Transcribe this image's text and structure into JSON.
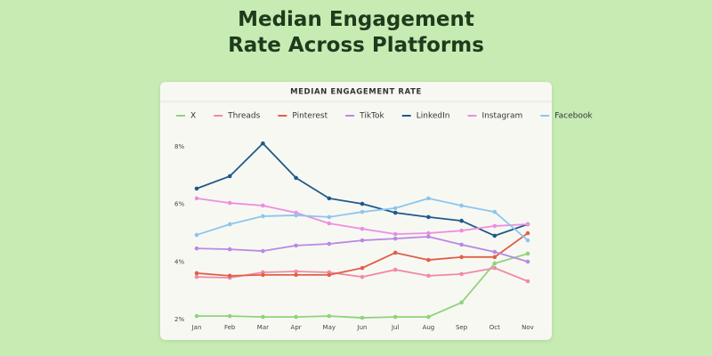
{
  "page_title": "Median Engagement Rate Across Platforms",
  "chart_data": {
    "type": "line",
    "title": "MEDIAN ENGAGEMENT RATE",
    "categories": [
      "Jan",
      "Feb",
      "Mar",
      "Apr",
      "May",
      "Jun",
      "Jul",
      "Aug",
      "Sep",
      "Oct",
      "Nov"
    ],
    "ylim": [
      2,
      8
    ],
    "yticks": [
      {
        "value": 2,
        "label": "2%"
      },
      {
        "value": 4,
        "label": "4%"
      },
      {
        "value": 6,
        "label": "6%"
      },
      {
        "value": 8,
        "label": "8%"
      }
    ],
    "series": [
      {
        "name": "X",
        "color": "#8fd47a",
        "values": [
          2.12,
          2.12,
          2.09,
          2.09,
          2.12,
          2.06,
          2.09,
          2.09,
          2.59,
          3.95,
          4.29
        ]
      },
      {
        "name": "Threads",
        "color": "#f08aa8",
        "values": [
          3.48,
          3.45,
          3.64,
          3.67,
          3.64,
          3.48,
          3.73,
          3.52,
          3.58,
          3.79,
          3.33
        ]
      },
      {
        "name": "Pinterest",
        "color": "#e0604a",
        "values": [
          3.61,
          3.52,
          3.55,
          3.55,
          3.55,
          3.79,
          4.32,
          4.07,
          4.17,
          4.17,
          5.0
        ]
      },
      {
        "name": "TikTok",
        "color": "#b88ae2",
        "values": [
          4.47,
          4.44,
          4.38,
          4.57,
          4.63,
          4.75,
          4.81,
          4.88,
          4.6,
          4.35,
          4.01
        ]
      },
      {
        "name": "LinkedIn",
        "color": "#1e5a8a",
        "values": [
          6.55,
          6.98,
          8.12,
          6.92,
          6.21,
          6.02,
          5.71,
          5.56,
          5.43,
          4.91,
          5.31
        ]
      },
      {
        "name": "Instagram",
        "color": "#ec8ee0",
        "values": [
          6.21,
          6.05,
          5.96,
          5.71,
          5.34,
          5.15,
          4.97,
          5.0,
          5.09,
          5.25,
          5.31
        ]
      },
      {
        "name": "Facebook",
        "color": "#8cc6ee",
        "values": [
          4.94,
          5.31,
          5.59,
          5.62,
          5.56,
          5.74,
          5.87,
          6.21,
          5.96,
          5.74,
          4.75
        ]
      }
    ]
  }
}
